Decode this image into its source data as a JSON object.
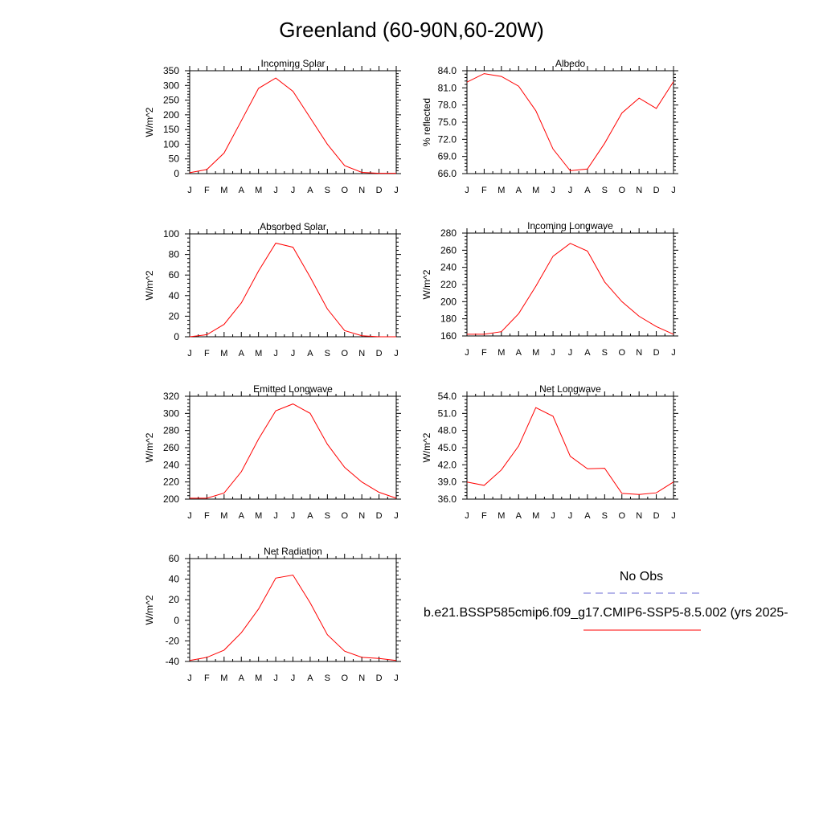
{
  "page": {
    "title": "Greenland (60-90N,60-20W)"
  },
  "legend": {
    "obs_label": "No Obs",
    "model_label": "b.e21.BSSP585cmip6.f09_g17.CMIP6-SSP5-8.5.002 (yrs 2025-",
    "obs_color": "#6b6bd6",
    "model_color": "#ff0000"
  },
  "month_labels": [
    "J",
    "F",
    "M",
    "A",
    "M",
    "J",
    "J",
    "A",
    "S",
    "O",
    "N",
    "D",
    "J"
  ],
  "chart_data": [
    {
      "type": "line",
      "title": "Incoming Solar",
      "ylabel": "W/m^2",
      "ylim": [
        0,
        350
      ],
      "yticks": [
        "0",
        "50",
        "100",
        "150",
        "200",
        "250",
        "300",
        "350"
      ],
      "values": [
        3,
        14,
        70,
        180,
        290,
        325,
        280,
        190,
        100,
        27,
        4,
        1,
        1
      ]
    },
    {
      "type": "line",
      "title": "Albedo",
      "ylabel": "% reflected",
      "ylim": [
        66,
        84
      ],
      "yticks": [
        "66.0",
        "69.0",
        "72.0",
        "75.0",
        "78.0",
        "81.0",
        "84.0"
      ],
      "values": [
        82.0,
        83.5,
        83.0,
        81.3,
        77.0,
        70.3,
        66.5,
        66.8,
        71.3,
        76.6,
        79.2,
        77.4,
        82.1
      ]
    },
    {
      "type": "line",
      "title": "Absorbed Solar",
      "ylabel": "W/m^2",
      "ylim": [
        0,
        100
      ],
      "yticks": [
        "0",
        "20",
        "40",
        "60",
        "80",
        "100"
      ],
      "values": [
        0,
        2,
        12,
        33,
        64,
        91,
        87,
        58,
        27,
        6,
        1,
        0,
        0
      ]
    },
    {
      "type": "line",
      "title": "Incoming Longwave",
      "ylabel": "W/m^2",
      "ylim": [
        160,
        280
      ],
      "yticks": [
        "160",
        "180",
        "200",
        "220",
        "240",
        "260",
        "280"
      ],
      "values": [
        162,
        162,
        165,
        186,
        218,
        253,
        268,
        259,
        223,
        200,
        183,
        171,
        162
      ]
    },
    {
      "type": "line",
      "title": "Emitted Longwave",
      "ylabel": "W/m^2",
      "ylim": [
        200,
        320
      ],
      "yticks": [
        "200",
        "220",
        "240",
        "260",
        "280",
        "300",
        "320"
      ],
      "values": [
        201,
        201,
        207,
        232,
        270,
        303,
        311,
        300,
        264,
        237,
        220,
        208,
        201
      ]
    },
    {
      "type": "line",
      "title": "Net Longwave",
      "ylabel": "W/m^2",
      "ylim": [
        36,
        54
      ],
      "yticks": [
        "36.0",
        "39.0",
        "42.0",
        "45.0",
        "48.0",
        "51.0",
        "54.0"
      ],
      "values": [
        39.0,
        38.4,
        41.1,
        45.3,
        52.0,
        50.5,
        43.5,
        41.3,
        41.4,
        37.0,
        36.8,
        37.1,
        39.0
      ]
    },
    {
      "type": "line",
      "title": "Net Radiation",
      "ylabel": "W/m^2",
      "ylim": [
        -40,
        60
      ],
      "yticks": [
        "-40",
        "-20",
        "0",
        "20",
        "40",
        "60"
      ],
      "values": [
        -39,
        -36,
        -29,
        -12,
        11,
        41,
        44,
        17,
        -14,
        -30,
        -36,
        -37,
        -39
      ]
    }
  ]
}
